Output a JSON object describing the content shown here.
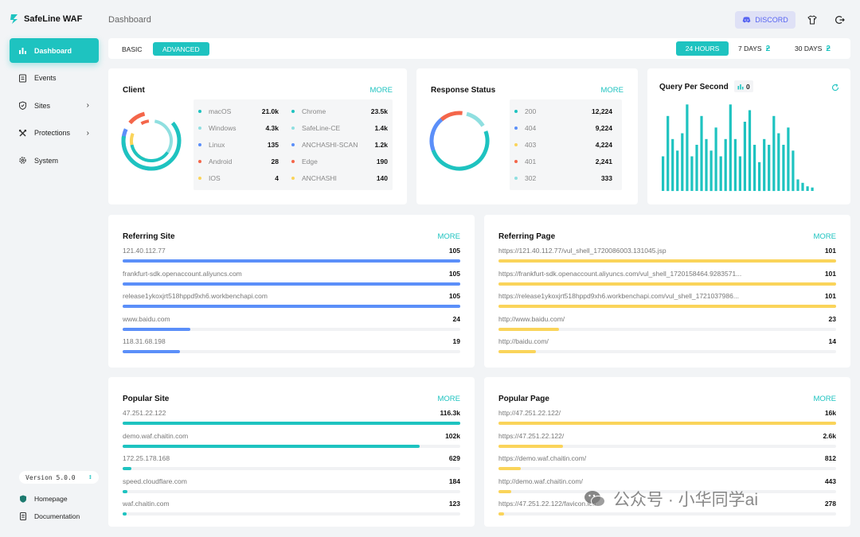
{
  "app": {
    "name": "SafeLine WAF"
  },
  "sidebar": {
    "items": [
      {
        "label": "Dashboard",
        "icon": "bar-chart-icon",
        "active": true
      },
      {
        "label": "Events",
        "icon": "list-icon"
      },
      {
        "label": "Sites",
        "icon": "shield-icon",
        "chevron": "›"
      },
      {
        "label": "Protections",
        "icon": "tools-icon",
        "chevron": "›"
      },
      {
        "label": "System",
        "icon": "gear-icon"
      }
    ],
    "version": "Version 5.0.0",
    "version_icon": "↕",
    "homepage": "Homepage",
    "documentation": "Documentation"
  },
  "header": {
    "title": "Dashboard",
    "discord": "DISCORD"
  },
  "tabs": {
    "basic": "BASIC",
    "advanced": "ADVANCED"
  },
  "ranges": {
    "h24": "24 HOURS",
    "d7": "7 DAYS",
    "d30": "30 DAYS"
  },
  "client": {
    "title": "Client",
    "more": "MORE",
    "os": [
      {
        "label": "macOS",
        "value": "21.0k",
        "color": "#1ec3c0"
      },
      {
        "label": "Windows",
        "value": "4.3k",
        "color": "#8fdfe0"
      },
      {
        "label": "Linux",
        "value": "135",
        "color": "#5b8ff9"
      },
      {
        "label": "Android",
        "value": "28",
        "color": "#f4664a"
      },
      {
        "label": "IOS",
        "value": "4",
        "color": "#fad45a"
      }
    ],
    "browsers": [
      {
        "label": "Chrome",
        "value": "23.5k",
        "color": "#1ec3c0"
      },
      {
        "label": "SafeLine-CE",
        "value": "1.4k",
        "color": "#8fdfe0"
      },
      {
        "label": "ANCHASHI-SCAN",
        "value": "1.2k",
        "color": "#5b8ff9"
      },
      {
        "label": "Edge",
        "value": "190",
        "color": "#f4664a"
      },
      {
        "label": "ANCHASHI",
        "value": "140",
        "color": "#fad45a"
      }
    ]
  },
  "response": {
    "title": "Response Status",
    "more": "MORE",
    "items": [
      {
        "label": "200",
        "value": "12,224",
        "color": "#1ec3c0"
      },
      {
        "label": "404",
        "value": "9,224",
        "color": "#5b8ff9"
      },
      {
        "label": "403",
        "value": "4,224",
        "color": "#fad45a"
      },
      {
        "label": "401",
        "value": "2,241",
        "color": "#f4664a"
      },
      {
        "label": "302",
        "value": "333",
        "color": "#8fdfe0"
      }
    ]
  },
  "qps": {
    "title": "Query Per Second",
    "value": "0"
  },
  "chart_data": {
    "type": "bar",
    "title": "Query Per Second",
    "values": [
      6,
      13,
      9,
      7,
      10,
      15,
      6,
      8,
      13,
      9,
      7,
      11,
      6,
      9,
      15,
      9,
      6,
      12,
      14,
      8,
      5,
      9,
      8,
      13,
      10,
      8,
      11,
      7,
      2,
      1.4,
      0.8,
      0.6
    ],
    "ylim": [
      0,
      16
    ],
    "color": "#1ec3c0"
  },
  "referring_site": {
    "title": "Referring Site",
    "more": "MORE",
    "color": "#5b8ff9",
    "rows": [
      {
        "label": "121.40.112.77",
        "value": "105",
        "pct": 100
      },
      {
        "label": "frankfurt-sdk.openaccount.aliyuncs.com",
        "value": "105",
        "pct": 100
      },
      {
        "label": "release1ykoxjrt518hppd9xh6.workbenchapi.com",
        "value": "105",
        "pct": 100
      },
      {
        "label": "www.baidu.com",
        "value": "24",
        "pct": 20
      },
      {
        "label": "118.31.68.198",
        "value": "19",
        "pct": 17
      }
    ]
  },
  "referring_page": {
    "title": "Referring Page",
    "more": "MORE",
    "color": "#fad45a",
    "rows": [
      {
        "label": "https://121.40.112.77/vul_shell_1720086003.131045.jsp",
        "value": "101",
        "pct": 100
      },
      {
        "label": "https://frankfurt-sdk.openaccount.aliyuncs.com/vul_shell_1720158464.9283571...",
        "value": "101",
        "pct": 100
      },
      {
        "label": "https://release1ykoxjrt518hppd9xh6.workbenchapi.com/vul_shell_1721037986...",
        "value": "101",
        "pct": 100
      },
      {
        "label": "http://www.baidu.com/",
        "value": "23",
        "pct": 18
      },
      {
        "label": "http://baidu.com/",
        "value": "14",
        "pct": 11
      }
    ]
  },
  "popular_site": {
    "title": "Popular Site",
    "more": "MORE",
    "color": "#1ec3c0",
    "rows": [
      {
        "label": "47.251.22.122",
        "value": "116.3k",
        "pct": 100
      },
      {
        "label": "demo.waf.chaitin.com",
        "value": "102k",
        "pct": 88
      },
      {
        "label": "172.25.178.168",
        "value": "629",
        "pct": 2.5
      },
      {
        "label": "speed.cloudflare.com",
        "value": "184",
        "pct": 1.5
      },
      {
        "label": "waf.chaitin.com",
        "value": "123",
        "pct": 1.2
      }
    ]
  },
  "popular_page": {
    "title": "Popular Page",
    "more": "MORE",
    "color": "#fad45a",
    "rows": [
      {
        "label": "http://47.251.22.122/",
        "value": "16k",
        "pct": 100
      },
      {
        "label": "https://47.251.22.122/",
        "value": "2.6k",
        "pct": 19
      },
      {
        "label": "https://demo.waf.chaitin.com/",
        "value": "812",
        "pct": 6.5
      },
      {
        "label": "http://demo.waf.chaitin.com/",
        "value": "443",
        "pct": 3.8
      },
      {
        "label": "https://47.251.22.122/favicon.ico",
        "value": "278",
        "pct": 1.7
      }
    ]
  },
  "watermark": {
    "text": "公众号 · 小华同学ai"
  }
}
